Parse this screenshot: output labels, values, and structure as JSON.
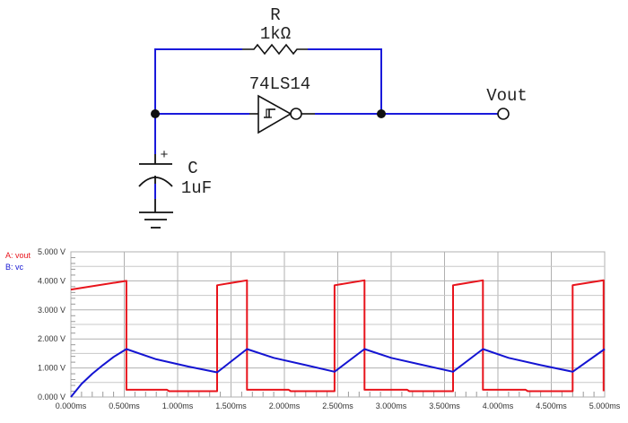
{
  "circuit": {
    "resistor": {
      "name": "R",
      "value": "1kΩ"
    },
    "capacitor": {
      "name": "C",
      "value": "1uF",
      "polarity": "+"
    },
    "gate": {
      "part": "74LS14",
      "type": "schmitt-trigger-inverter"
    },
    "output_label": "Vout",
    "wire_color": "#1a1adb",
    "component_color": "#111111"
  },
  "chart_data": {
    "type": "line",
    "xlim": [
      0,
      5
    ],
    "ylim": [
      0,
      5
    ],
    "grid": true,
    "legend_position": "top-left",
    "x_tick_labels": [
      "0.000ms",
      "0.500ms",
      "1.000ms",
      "1.500ms",
      "2.000ms",
      "2.500ms",
      "3.000ms",
      "3.500ms",
      "4.000ms",
      "4.500ms",
      "5.000ms"
    ],
    "x_ticks": [
      0,
      0.5,
      1,
      1.5,
      2,
      2.5,
      3,
      3.5,
      4,
      4.5,
      5
    ],
    "y_tick_labels": [
      "0.000 V",
      "1.000 V",
      "2.000 V",
      "3.000 V",
      "4.000 V",
      "5.000 V"
    ],
    "y_ticks": [
      0,
      1,
      2,
      3,
      4,
      5
    ],
    "series": [
      {
        "name": "A: vout",
        "color": "#e8141c",
        "points": [
          [
            0,
            3.7
          ],
          [
            0.52,
            4.0
          ],
          [
            0.52,
            0.25
          ],
          [
            0.9,
            0.25
          ],
          [
            0.92,
            0.2
          ],
          [
            1.37,
            0.2
          ],
          [
            1.37,
            3.85
          ],
          [
            1.65,
            4.02
          ],
          [
            1.65,
            0.25
          ],
          [
            2.04,
            0.25
          ],
          [
            2.06,
            0.2
          ],
          [
            2.47,
            0.2
          ],
          [
            2.47,
            3.85
          ],
          [
            2.75,
            4.02
          ],
          [
            2.75,
            0.25
          ],
          [
            3.15,
            0.25
          ],
          [
            3.17,
            0.2
          ],
          [
            3.58,
            0.2
          ],
          [
            3.58,
            3.85
          ],
          [
            3.86,
            4.02
          ],
          [
            3.86,
            0.25
          ],
          [
            4.26,
            0.25
          ],
          [
            4.28,
            0.2
          ],
          [
            4.7,
            0.2
          ],
          [
            4.7,
            3.85
          ],
          [
            4.99,
            4.02
          ],
          [
            4.99,
            0.2
          ]
        ]
      },
      {
        "name": "B: vc",
        "color": "#1414d2",
        "points": [
          [
            0,
            0
          ],
          [
            0.1,
            0.45
          ],
          [
            0.2,
            0.8
          ],
          [
            0.3,
            1.1
          ],
          [
            0.4,
            1.38
          ],
          [
            0.52,
            1.65
          ],
          [
            0.8,
            1.3
          ],
          [
            1.1,
            1.05
          ],
          [
            1.37,
            0.85
          ],
          [
            1.65,
            1.65
          ],
          [
            1.9,
            1.35
          ],
          [
            2.2,
            1.1
          ],
          [
            2.47,
            0.87
          ],
          [
            2.75,
            1.65
          ],
          [
            3.0,
            1.35
          ],
          [
            3.3,
            1.1
          ],
          [
            3.58,
            0.87
          ],
          [
            3.86,
            1.65
          ],
          [
            4.1,
            1.35
          ],
          [
            4.4,
            1.1
          ],
          [
            4.7,
            0.87
          ],
          [
            5.0,
            1.65
          ]
        ]
      }
    ]
  }
}
